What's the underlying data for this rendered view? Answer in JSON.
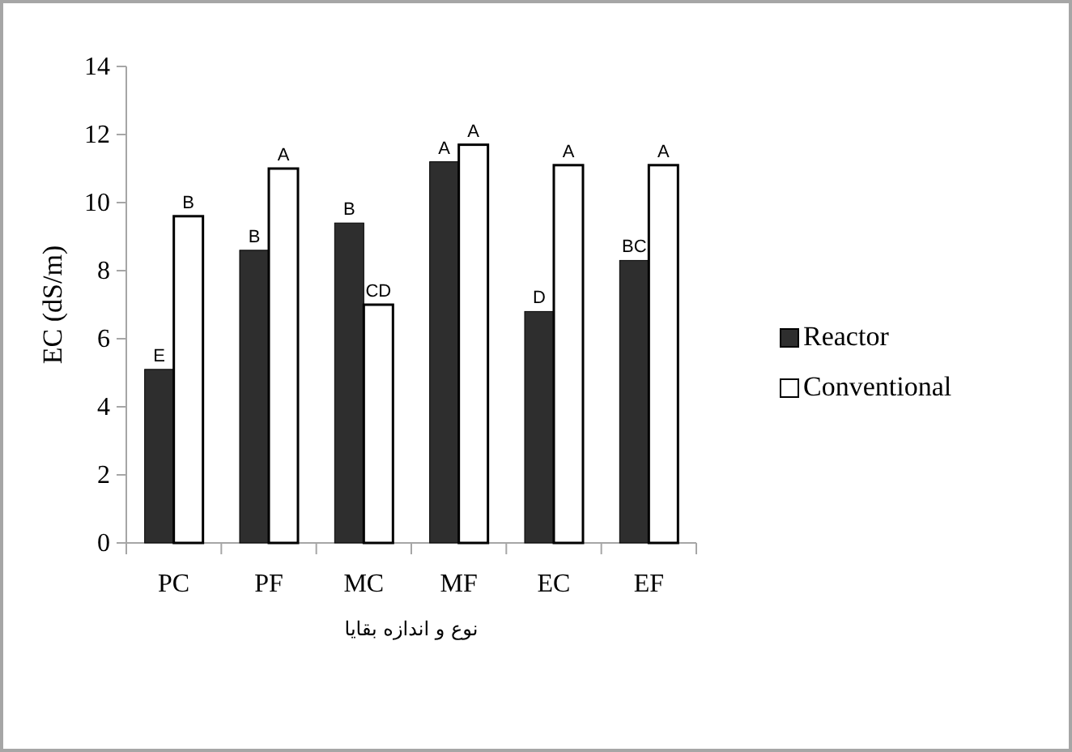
{
  "chart_data": {
    "type": "bar",
    "ylabel": "EC (dS/m)",
    "xlabel": "نوع و اندازه بقایا",
    "categories": [
      "PC",
      "PF",
      "MC",
      "MF",
      "EC",
      "EF"
    ],
    "series": [
      {
        "name": "Reactor",
        "color": "#2e2e2e",
        "values": [
          5.1,
          8.6,
          9.4,
          11.2,
          6.8,
          8.3
        ],
        "value_labels": [
          "E",
          "B",
          "B",
          "A",
          "D",
          "BC"
        ]
      },
      {
        "name": "Conventional",
        "color": "#ffffff",
        "values": [
          9.6,
          11.0,
          7.0,
          11.7,
          11.1,
          11.1
        ],
        "value_labels": [
          "B",
          "A",
          "CD",
          "A",
          "A",
          "A"
        ]
      }
    ],
    "ylim": [
      0,
      14
    ],
    "yticks": [
      0,
      2,
      4,
      6,
      8,
      10,
      12,
      14
    ],
    "legend": "right",
    "grid": false
  }
}
